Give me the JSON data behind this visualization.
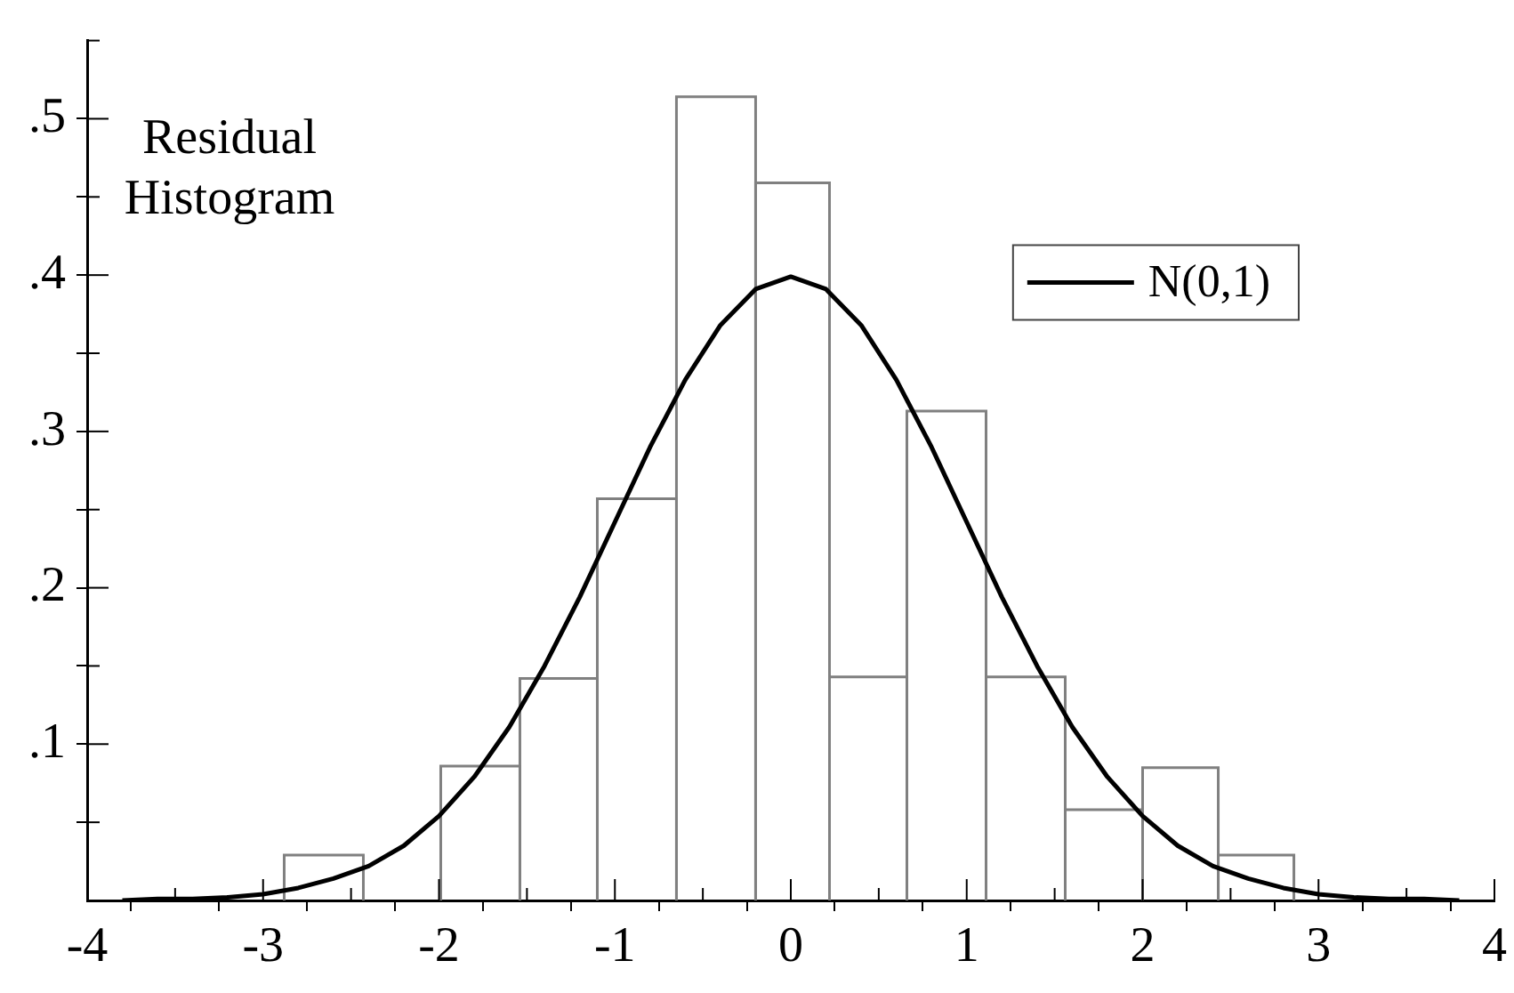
{
  "chart_data": {
    "type": "histogram",
    "title": "Residual Histogram",
    "color": "#808080",
    "bins": [
      -2.88,
      -2.43,
      -1.99,
      -1.54,
      -1.1,
      -0.65,
      -0.2,
      0.22,
      0.66,
      1.11,
      1.56,
      2.0,
      2.43,
      2.86
    ],
    "values": [
      0.029,
      0,
      0.086,
      0.142,
      0.257,
      0.514,
      0.459,
      0.143,
      0.313,
      0.143,
      0.058,
      0.085,
      0.029
    ],
    "series": [
      {
        "type": "line",
        "name": "N(0,1)",
        "color": "#000000",
        "x": [
          -3.8,
          -3.6,
          -3.4,
          -3.2,
          -3.0,
          -2.8,
          -2.6,
          -2.4,
          -2.2,
          -2.0,
          -1.8,
          -1.6,
          -1.4,
          -1.2,
          -1.0,
          -0.8,
          -0.6,
          -0.4,
          -0.2,
          0,
          0.2,
          0.4,
          0.6,
          0.8,
          1.0,
          1.2,
          1.4,
          1.6,
          1.8,
          2.0,
          2.2,
          2.4,
          2.6,
          2.8,
          3.0,
          3.2,
          3.4,
          3.6,
          3.8
        ],
        "values": [
          0.0,
          0.001,
          0.001,
          0.002,
          0.004,
          0.008,
          0.014,
          0.022,
          0.035,
          0.054,
          0.079,
          0.111,
          0.15,
          0.194,
          0.242,
          0.29,
          0.333,
          0.368,
          0.391,
          0.399,
          0.391,
          0.368,
          0.333,
          0.29,
          0.242,
          0.194,
          0.15,
          0.111,
          0.079,
          0.054,
          0.035,
          0.022,
          0.014,
          0.008,
          0.004,
          0.002,
          0.001,
          0.001,
          0.0
        ]
      }
    ],
    "xlim": [
      -4,
      4
    ],
    "xticks": [
      -4,
      {
        "value": -3.5,
        "label": null
      },
      -3,
      {
        "value": -2.5,
        "label": null
      },
      -2,
      {
        "value": -1.5,
        "label": null
      },
      -1,
      {
        "value": -0.5,
        "label": null
      },
      0,
      {
        "value": 0.5,
        "label": null
      },
      1,
      {
        "value": 1.5,
        "label": null
      },
      2,
      {
        "value": 2.5,
        "label": null
      },
      3,
      {
        "value": 3.5,
        "label": null
      },
      4
    ],
    "ylim": [
      0,
      0.55
    ],
    "yticks": [
      {
        "value": 0.05,
        "label": null
      },
      {
        "value": 0.1,
        "label": ".1"
      },
      {
        "value": 0.15,
        "label": null
      },
      {
        "value": 0.2,
        "label": ".2"
      },
      {
        "value": 0.25,
        "label": null
      },
      {
        "value": 0.3,
        "label": ".3"
      },
      {
        "value": 0.35,
        "label": null
      },
      {
        "value": 0.4,
        "label": ".4"
      },
      {
        "value": 0.45,
        "label": null
      },
      {
        "value": 0.5,
        "label": ".5"
      }
    ],
    "legend": "top right",
    "marker": "none",
    "line_style": "solid"
  }
}
